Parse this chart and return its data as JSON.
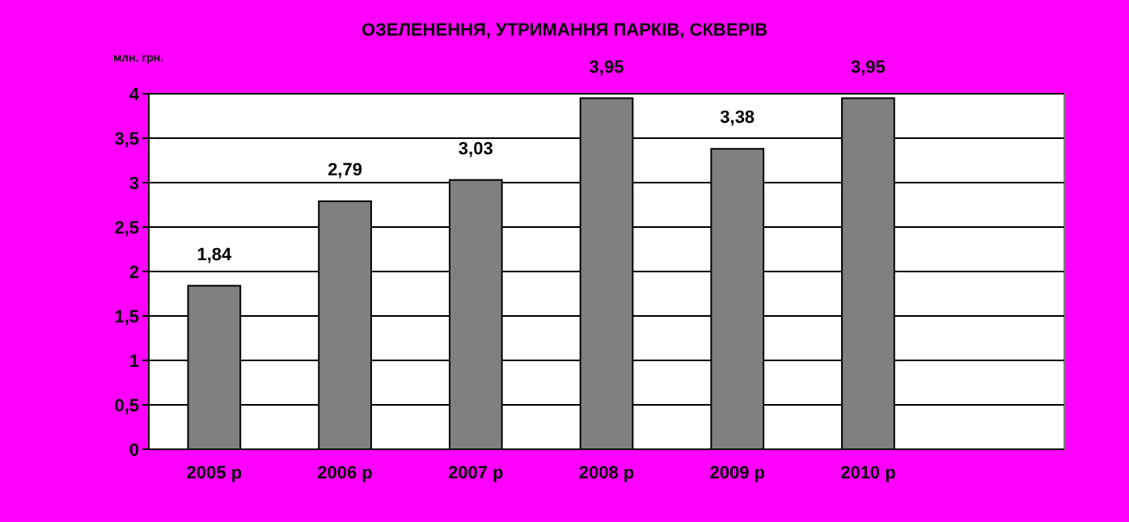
{
  "chart_data": {
    "type": "bar",
    "title": "ОЗЕЛЕНЕННЯ, УТРИМАННЯ ПАРКІВ, СКВЕРІВ",
    "ylabel": "млн. грн.",
    "categories": [
      "2005 р",
      "2006 р",
      "2007 р",
      "2008 р",
      "2009 р",
      "2010 р",
      null
    ],
    "values": [
      1.84,
      2.79,
      3.03,
      3.95,
      3.38,
      3.95,
      null
    ],
    "value_labels": [
      "1,84",
      "2,79",
      "3,03",
      "3,95",
      "3,38",
      "3,95",
      null
    ],
    "color": "#808080",
    "ylim": [
      0,
      4
    ],
    "yticks": [
      0,
      {
        "value": 0.5,
        "label": "0,5"
      },
      1,
      {
        "value": 1.5,
        "label": "1,5"
      },
      2,
      {
        "value": 2.5,
        "label": "2,5"
      },
      3,
      {
        "value": 3.5,
        "label": "3,5"
      },
      4
    ],
    "grid": "y"
  }
}
